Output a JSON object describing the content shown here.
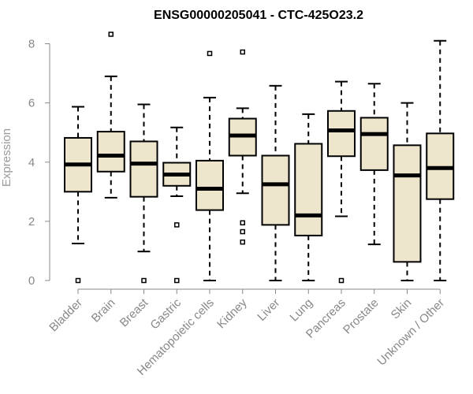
{
  "chart_data": {
    "type": "box",
    "title": "ENSG00000205041 - CTC-425O23.2",
    "xlabel": "",
    "ylabel": "Expression",
    "ylim": [
      0,
      8
    ],
    "yticks": [
      0,
      2,
      4,
      6,
      8
    ],
    "colors": {
      "box_fill": "#ede6cc",
      "stroke": "#000000",
      "axis": "#888888"
    },
    "categories": [
      "Bladder",
      "Brain",
      "Breast",
      "Gastric",
      "Hematopoietic cells",
      "Kidney",
      "Liver",
      "Lung",
      "Pancreas",
      "Prostate",
      "Skin",
      "Unknown / Other"
    ],
    "boxes": [
      {
        "name": "Bladder",
        "min": 1.25,
        "q1": 3.0,
        "median": 3.92,
        "q3": 4.82,
        "max": 5.87,
        "outliers": [
          0.0
        ]
      },
      {
        "name": "Brain",
        "min": 2.8,
        "q1": 3.68,
        "median": 4.22,
        "q3": 5.03,
        "max": 6.9,
        "outliers": [
          8.32
        ]
      },
      {
        "name": "Breast",
        "min": 0.98,
        "q1": 2.83,
        "median": 3.95,
        "q3": 4.7,
        "max": 5.95,
        "outliers": [
          0.0
        ]
      },
      {
        "name": "Gastric",
        "min": 2.85,
        "q1": 3.2,
        "median": 3.58,
        "q3": 3.98,
        "max": 5.17,
        "outliers": [
          1.88,
          0.0
        ]
      },
      {
        "name": "Hematopoietic cells",
        "min": 0.0,
        "q1": 2.38,
        "median": 3.1,
        "q3": 4.05,
        "max": 6.18,
        "outliers": [
          7.67
        ]
      },
      {
        "name": "Kidney",
        "min": 2.95,
        "q1": 4.22,
        "median": 4.9,
        "q3": 5.47,
        "max": 5.82,
        "outliers": [
          7.72,
          1.95,
          1.65,
          1.3
        ]
      },
      {
        "name": "Liver",
        "min": 0.0,
        "q1": 1.88,
        "median": 3.25,
        "q3": 4.22,
        "max": 6.58,
        "outliers": []
      },
      {
        "name": "Lung",
        "min": 0.0,
        "q1": 1.52,
        "median": 2.2,
        "q3": 4.62,
        "max": 5.62,
        "outliers": []
      },
      {
        "name": "Pancreas",
        "min": 2.17,
        "q1": 4.2,
        "median": 5.07,
        "q3": 5.73,
        "max": 6.72,
        "outliers": [
          0.0
        ]
      },
      {
        "name": "Prostate",
        "min": 1.22,
        "q1": 3.73,
        "median": 4.95,
        "q3": 5.5,
        "max": 6.65,
        "outliers": []
      },
      {
        "name": "Skin",
        "min": 0.0,
        "q1": 0.63,
        "median": 3.55,
        "q3": 4.57,
        "max": 6.0,
        "outliers": []
      },
      {
        "name": "Unknown / Other",
        "min": 0.0,
        "q1": 2.75,
        "median": 3.8,
        "q3": 4.97,
        "max": 8.1,
        "outliers": []
      }
    ]
  }
}
